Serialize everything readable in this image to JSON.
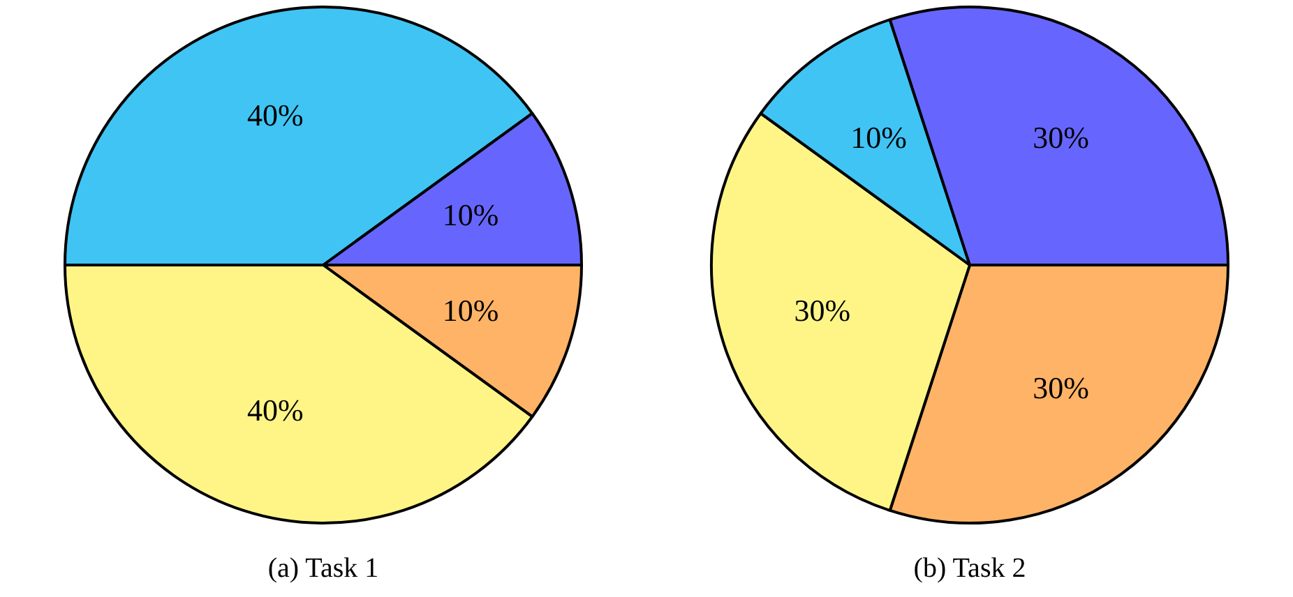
{
  "chart_data": [
    {
      "type": "pie",
      "title": "(a) Task 1",
      "categories": [
        null,
        null,
        null,
        null
      ],
      "values": [
        10,
        40,
        40,
        10
      ],
      "colors": [
        "#ffb366",
        "#fff587",
        "#40c4f4",
        "#6666ff"
      ],
      "value_labels": [
        "10%",
        "40%",
        "40%",
        "10%"
      ],
      "legend": false
    },
    {
      "type": "pie",
      "title": "(b) Task 2",
      "categories": [
        null,
        null,
        null,
        null
      ],
      "values": [
        30,
        30,
        10,
        30
      ],
      "colors": [
        "#ffb366",
        "#fff587",
        "#40c4f4",
        "#6666ff"
      ],
      "value_labels": [
        "30%",
        "30%",
        "10%",
        "30%"
      ],
      "legend": false
    }
  ]
}
